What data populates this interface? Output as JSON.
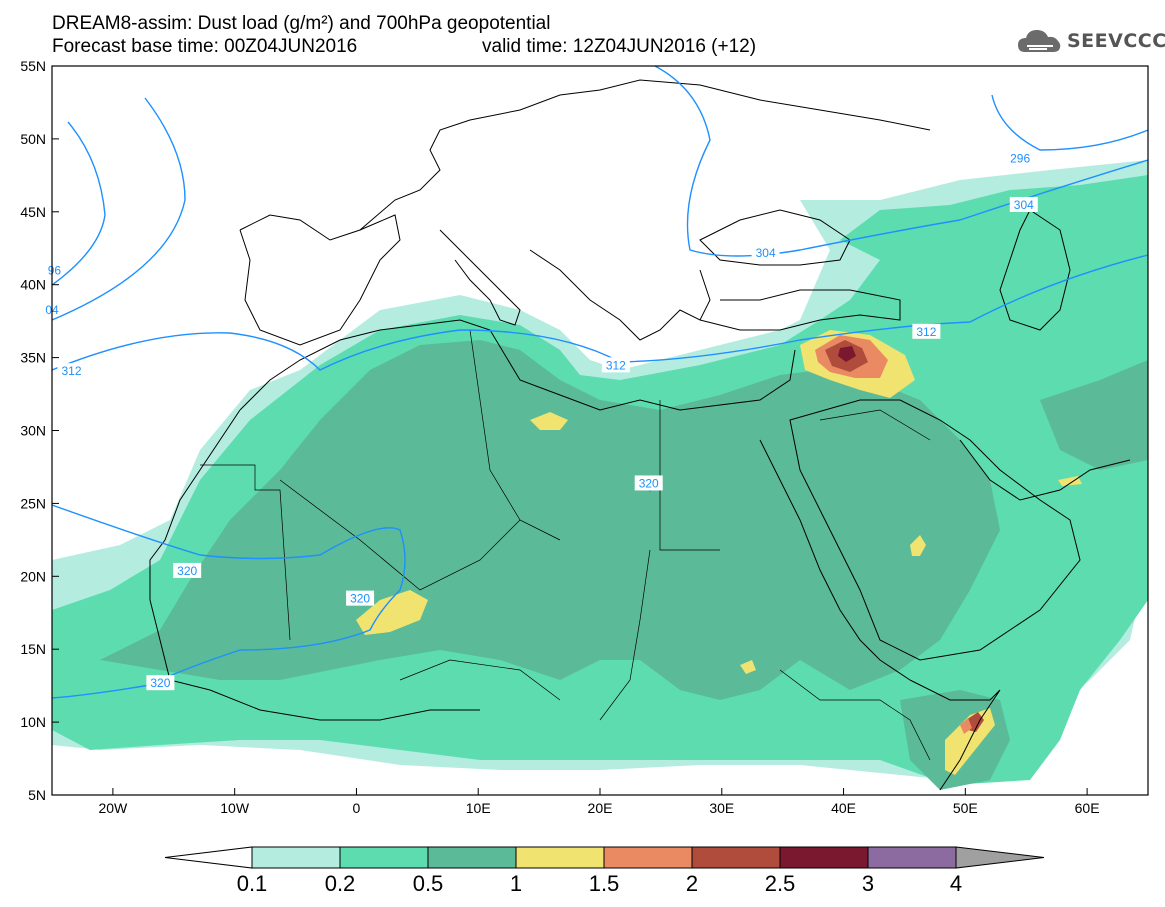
{
  "title": {
    "line1": "DREAM8-assim: Dust load (g/m²) and 700hPa geopotential",
    "line2": "Forecast base time: 00Z04JUN2016",
    "valid_time": "valid time: 12Z04JUN2016 (+12)"
  },
  "logo": {
    "text": "SEEVCCC",
    "icon": "cloud-icon"
  },
  "map": {
    "lon_range": [
      -25,
      65
    ],
    "lat_range": [
      5,
      55
    ],
    "lon_ticks": [
      {
        "value": -20,
        "label": "20W"
      },
      {
        "value": -10,
        "label": "10W"
      },
      {
        "value": 0,
        "label": "0"
      },
      {
        "value": 10,
        "label": "10E"
      },
      {
        "value": 20,
        "label": "20E"
      },
      {
        "value": 30,
        "label": "30E"
      },
      {
        "value": 40,
        "label": "40E"
      },
      {
        "value": 50,
        "label": "50E"
      },
      {
        "value": 60,
        "label": "60E"
      }
    ],
    "lat_ticks": [
      {
        "value": 5,
        "label": "5N"
      },
      {
        "value": 10,
        "label": "10N"
      },
      {
        "value": 15,
        "label": "15N"
      },
      {
        "value": 20,
        "label": "20N"
      },
      {
        "value": 25,
        "label": "25N"
      },
      {
        "value": 30,
        "label": "30N"
      },
      {
        "value": 35,
        "label": "35N"
      },
      {
        "value": 40,
        "label": "40N"
      },
      {
        "value": 45,
        "label": "45N"
      },
      {
        "value": 50,
        "label": "50N"
      },
      {
        "value": 55,
        "label": "55N"
      }
    ],
    "contour_labels": [
      {
        "text": "296",
        "lon": 54.5,
        "lat": 48.6
      },
      {
        "text": "304",
        "lon": 54.8,
        "lat": 45.4
      },
      {
        "text": "304",
        "lon": 33.6,
        "lat": 42.1
      },
      {
        "text": "312",
        "lon": 21.3,
        "lat": 34.4
      },
      {
        "text": "312",
        "lon": 46.8,
        "lat": 36.7
      },
      {
        "text": "312",
        "lon": -23.4,
        "lat": 34.0
      },
      {
        "text": "320",
        "lon": 24.0,
        "lat": 26.3
      },
      {
        "text": "320",
        "lon": -13.9,
        "lat": 20.3
      },
      {
        "text": "320",
        "lon": 0.3,
        "lat": 18.4
      },
      {
        "text": "320",
        "lon": -16.1,
        "lat": 12.6
      },
      {
        "text": "96",
        "lon": -24.8,
        "lat": 40.9
      },
      {
        "text": "04",
        "lon": -25.0,
        "lat": 38.2
      }
    ],
    "colors": {
      "land_outline": "#000000",
      "contour": "#1e90ff",
      "land_bg": "#ffffff"
    }
  },
  "colorbar": {
    "labels": [
      "0.1",
      "0.2",
      "0.5",
      "1",
      "1.5",
      "2",
      "2.5",
      "3",
      "4"
    ],
    "colors": [
      "#b4ede0",
      "#5ddcb0",
      "#5bba98",
      "#f0e370",
      "#ea8a62",
      "#b04c3c",
      "#7a1830",
      "#8c6ca0",
      "#a0a0a0"
    ],
    "low_color": "#ffffff",
    "high_color": "#a0a0a0"
  }
}
